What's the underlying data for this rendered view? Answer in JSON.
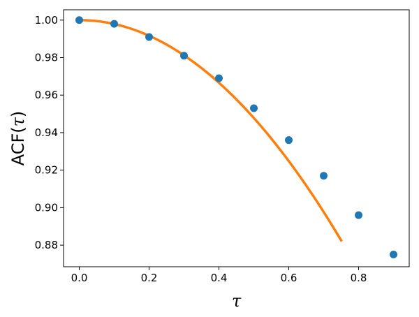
{
  "chart_data": {
    "type": "scatter",
    "xlabel": "τ",
    "ylabel_prefix": "ACF(",
    "ylabel_var": "τ",
    "ylabel_suffix": ")",
    "xlim": [
      -0.045,
      0.945
    ],
    "ylim": [
      0.8685,
      1.0055
    ],
    "grid": false,
    "x_ticks": [
      0.0,
      0.2,
      0.4,
      0.6,
      0.8
    ],
    "x_tick_labels": [
      "0.0",
      "0.2",
      "0.4",
      "0.6",
      "0.8"
    ],
    "y_ticks": [
      0.88,
      0.9,
      0.92,
      0.94,
      0.96,
      0.98,
      1.0
    ],
    "y_tick_labels": [
      "0.88",
      "0.90",
      "0.92",
      "0.94",
      "0.96",
      "0.98",
      "1.00"
    ],
    "series": [
      {
        "kind": "points",
        "color": "#1f77b4",
        "x": [
          0.0,
          0.1,
          0.2,
          0.3,
          0.4,
          0.5,
          0.6,
          0.7,
          0.8,
          0.9
        ],
        "y": [
          1.0,
          0.998,
          0.991,
          0.981,
          0.969,
          0.953,
          0.936,
          0.917,
          0.896,
          0.875
        ]
      },
      {
        "kind": "curve",
        "color": "#ff7f0e",
        "x_range": [
          0.0,
          0.75
        ],
        "model": "quadratic",
        "a": 1.0,
        "b": 0.2088
      }
    ]
  }
}
